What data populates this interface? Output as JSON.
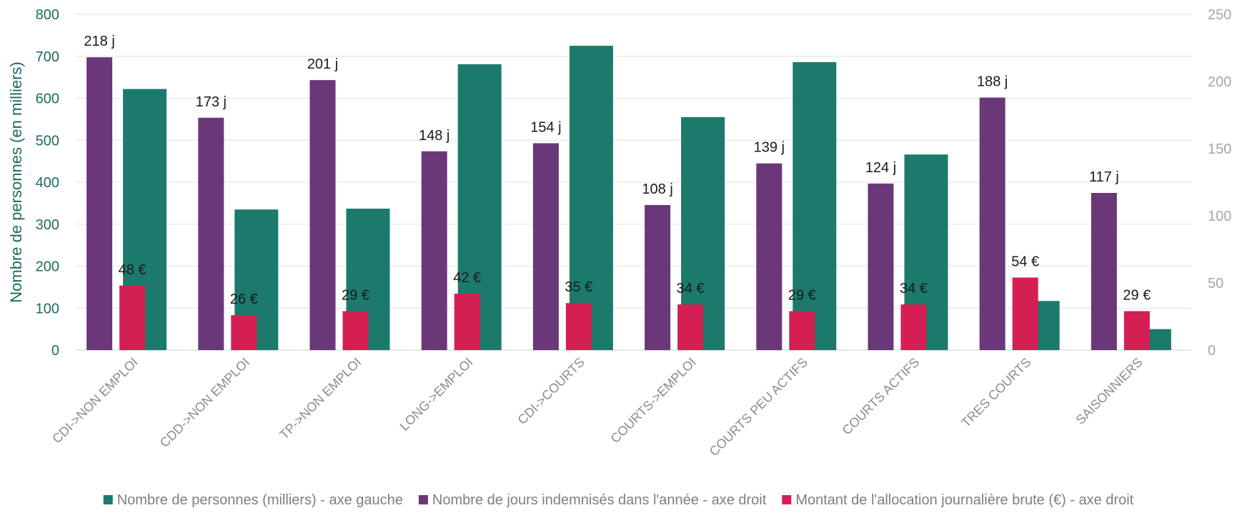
{
  "chart_data": {
    "type": "bar",
    "categories": [
      "CDI->NON EMPLOI",
      "CDD->NON EMPLOI",
      "TP->NON EMPLOI",
      "LONG->EMPLOI",
      "CDI->COURTS",
      "COURTS->EMPLOI",
      "COURTS PEU ACTIFS",
      "COURTS ACTIFS",
      "TRES COURTS",
      "SAISONNIERS"
    ],
    "series": [
      {
        "name": "Nombre de personnes (milliers) - axe gauche",
        "axis": "left",
        "color": "#1c7a6c",
        "values": [
          622,
          335,
          337,
          681,
          725,
          555,
          686,
          466,
          117,
          50
        ]
      },
      {
        "name": "Nombre de jours indemnisés dans l'année - axe droit",
        "axis": "right",
        "color": "#6a3879",
        "values": [
          218,
          173,
          201,
          148,
          154,
          108,
          139,
          124,
          188,
          117
        ],
        "labels": [
          "218 j",
          "173 j",
          "201 j",
          "148 j",
          "154 j",
          "108 j",
          "139 j",
          "124 j",
          "188 j",
          "117 j"
        ]
      },
      {
        "name": "Montant de l'allocation journalière brute (€) - axe droit",
        "axis": "right",
        "color": "#d41f52",
        "values": [
          48,
          26,
          29,
          42,
          35,
          34,
          29,
          34,
          54,
          29
        ],
        "labels": [
          "48 €",
          "26 €",
          "29 €",
          "42 €",
          "35 €",
          "34 €",
          "29 €",
          "34 €",
          "54 €",
          "29 €"
        ]
      }
    ],
    "ylabel": "Nombre de personnes (en milliers)",
    "ylabel_color": "#1c6b5e",
    "ylim": [
      0,
      800
    ],
    "yticks": [
      0,
      100,
      200,
      300,
      400,
      500,
      600,
      700,
      800
    ],
    "y2lim": [
      0,
      250
    ],
    "y2ticks": [
      0,
      50,
      100,
      150,
      200,
      250
    ],
    "grid": true,
    "legend_position": "bottom"
  }
}
